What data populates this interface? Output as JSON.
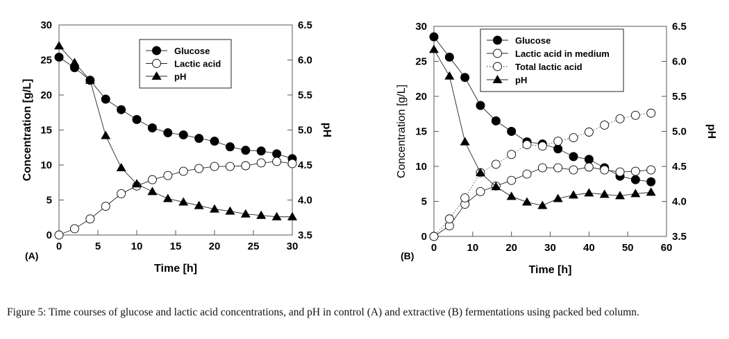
{
  "caption": "Figure 5: Time courses of glucose and lactic acid concentrations, and pH in control (A) and extractive (B) fermentations using packed bed column.",
  "chart_data": [
    {
      "type": "line",
      "panel_label": "(A)",
      "title": "",
      "xlabel": "Time [h]",
      "ylabel": "Concentration [g/L]",
      "y2label": "pH",
      "xlim": [
        0,
        30
      ],
      "ylim": [
        0,
        30
      ],
      "y2lim": [
        3.5,
        6.5
      ],
      "xticks": [
        "0",
        "5",
        "10",
        "15",
        "20",
        "25",
        "30"
      ],
      "yticks": [
        "0",
        "5",
        "10",
        "15",
        "20",
        "25",
        "30"
      ],
      "y2ticks": [
        "3.5",
        "4.0",
        "4.5",
        "5.0",
        "5.5",
        "6.0",
        "6.5"
      ],
      "grid": false,
      "legend_position": "top-center",
      "series": [
        {
          "name": "Glucose",
          "axis": "left",
          "marker": "filled-circle",
          "line": "solid",
          "x": [
            0,
            2,
            4,
            6,
            8,
            10,
            12,
            14,
            16,
            18,
            20,
            22,
            24,
            26,
            28,
            30
          ],
          "values": [
            25.4,
            23.9,
            22.1,
            19.4,
            17.9,
            16.5,
            15.3,
            14.6,
            14.3,
            13.8,
            13.4,
            12.6,
            12.1,
            12.0,
            11.6,
            10.9
          ]
        },
        {
          "name": "Lactic acid",
          "axis": "left",
          "marker": "open-circle",
          "line": "solid",
          "x": [
            0,
            2,
            4,
            6,
            8,
            10,
            12,
            14,
            16,
            18,
            20,
            22,
            24,
            26,
            28,
            30
          ],
          "values": [
            0.0,
            0.9,
            2.3,
            4.1,
            5.9,
            7.0,
            7.9,
            8.5,
            9.1,
            9.5,
            9.8,
            9.8,
            9.9,
            10.3,
            10.5,
            10.2
          ]
        },
        {
          "name": "pH",
          "axis": "right",
          "marker": "filled-triangle",
          "line": "solid",
          "x": [
            0,
            2,
            4,
            6,
            8,
            10,
            12,
            14,
            16,
            18,
            20,
            22,
            24,
            26,
            28,
            30
          ],
          "values": [
            6.2,
            5.96,
            5.71,
            4.92,
            4.46,
            4.23,
            4.12,
            4.02,
            3.97,
            3.92,
            3.87,
            3.84,
            3.8,
            3.78,
            3.76,
            3.76
          ]
        }
      ]
    },
    {
      "type": "line",
      "panel_label": "(B)",
      "title": "",
      "xlabel": "Time [h]",
      "ylabel": "Concentration [g/L]",
      "y2label": "pH",
      "xlim": [
        0,
        60
      ],
      "ylim": [
        0,
        30
      ],
      "y2lim": [
        3.5,
        6.5
      ],
      "xticks": [
        "0",
        "10",
        "20",
        "30",
        "40",
        "50",
        "60"
      ],
      "yticks": [
        "0",
        "5",
        "10",
        "15",
        "20",
        "25",
        "30"
      ],
      "y2ticks": [
        "3.5",
        "4.0",
        "4.5",
        "5.0",
        "5.5",
        "6.0",
        "6.5"
      ],
      "grid": false,
      "legend_position": "top-center",
      "series": [
        {
          "name": "Glucose",
          "axis": "left",
          "marker": "filled-circle",
          "line": "solid",
          "x": [
            0,
            4,
            8,
            12,
            16,
            20,
            24,
            28,
            32,
            36,
            40,
            44,
            48,
            52,
            56
          ],
          "values": [
            28.5,
            25.6,
            22.7,
            18.7,
            16.5,
            15.0,
            13.5,
            13.2,
            12.5,
            11.4,
            11.0,
            9.8,
            8.6,
            8.1,
            7.8
          ]
        },
        {
          "name": "Lactic acid in medium",
          "axis": "left",
          "marker": "open-circle",
          "line": "solid",
          "x": [
            0,
            4,
            8,
            12,
            16,
            20,
            24,
            28,
            32,
            36,
            40,
            44,
            48,
            52,
            56
          ],
          "values": [
            0.0,
            1.5,
            4.6,
            6.4,
            7.2,
            8.0,
            8.9,
            9.8,
            9.8,
            9.5,
            9.9,
            9.5,
            9.2,
            9.3,
            9.5
          ]
        },
        {
          "name": "Total lactic acid",
          "axis": "left",
          "marker": "open-circle",
          "line": "dotted",
          "x": [
            0,
            4,
            8,
            12,
            16,
            20,
            24,
            28,
            32,
            36,
            40,
            44,
            48,
            52,
            56
          ],
          "values": [
            0.0,
            2.5,
            5.5,
            9.1,
            10.3,
            11.7,
            13.1,
            12.9,
            13.6,
            14.1,
            14.9,
            15.9,
            16.8,
            17.3,
            17.6
          ]
        },
        {
          "name": "pH",
          "axis": "right",
          "marker": "filled-triangle",
          "line": "solid",
          "x": [
            0,
            4,
            8,
            12,
            16,
            20,
            24,
            28,
            32,
            36,
            40,
            44,
            48,
            52,
            56
          ],
          "values": [
            6.17,
            5.79,
            4.85,
            4.41,
            4.21,
            4.07,
            3.99,
            3.94,
            4.04,
            4.09,
            4.12,
            4.1,
            4.08,
            4.11,
            4.13
          ]
        }
      ]
    }
  ]
}
